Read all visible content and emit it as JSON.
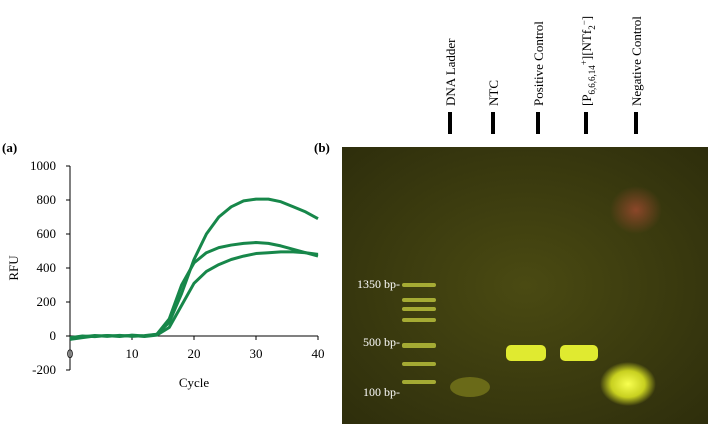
{
  "chart_data": {
    "type": "line",
    "panel_label": "(a)",
    "y_label": "RFU",
    "x_label": "Cycle",
    "x": [
      0,
      2,
      4,
      6,
      8,
      10,
      12,
      14,
      16,
      18,
      20,
      22,
      24,
      26,
      28,
      30,
      32,
      34,
      36,
      38,
      40
    ],
    "series": [
      {
        "color": "#17874a",
        "values": [
          -20,
          -10,
          0,
          2,
          -3,
          5,
          0,
          10,
          80,
          250,
          450,
          600,
          700,
          760,
          795,
          805,
          805,
          790,
          760,
          730,
          690
        ]
      },
      {
        "color": "#17874a",
        "values": [
          -15,
          -5,
          3,
          -2,
          4,
          -2,
          2,
          10,
          100,
          300,
          430,
          490,
          520,
          535,
          545,
          550,
          545,
          530,
          510,
          490,
          470
        ]
      },
      {
        "color": "#17874a",
        "values": [
          -10,
          0,
          -4,
          3,
          0,
          3,
          -3,
          5,
          50,
          180,
          310,
          380,
          420,
          450,
          470,
          485,
          490,
          495,
          495,
          490,
          480
        ]
      }
    ],
    "xlim": [
      0,
      40
    ],
    "xticks": [
      0,
      10,
      20,
      30,
      40
    ],
    "ylim": [
      -200,
      1000
    ],
    "yticks": [
      -200,
      0,
      200,
      400,
      600,
      800,
      1000
    ],
    "grid": false
  },
  "gel": {
    "panel_label": "(b)",
    "lanes": [
      "DNA Ladder",
      "NTC",
      "Positive Control",
      [
        "[P",
        "6,6,6,14",
        "+",
        "][NTf",
        "2",
        "−",
        "]"
      ],
      "Negative Control"
    ],
    "markers": [
      "1350 bp-",
      "500 bp-",
      "100 bp-"
    ]
  }
}
